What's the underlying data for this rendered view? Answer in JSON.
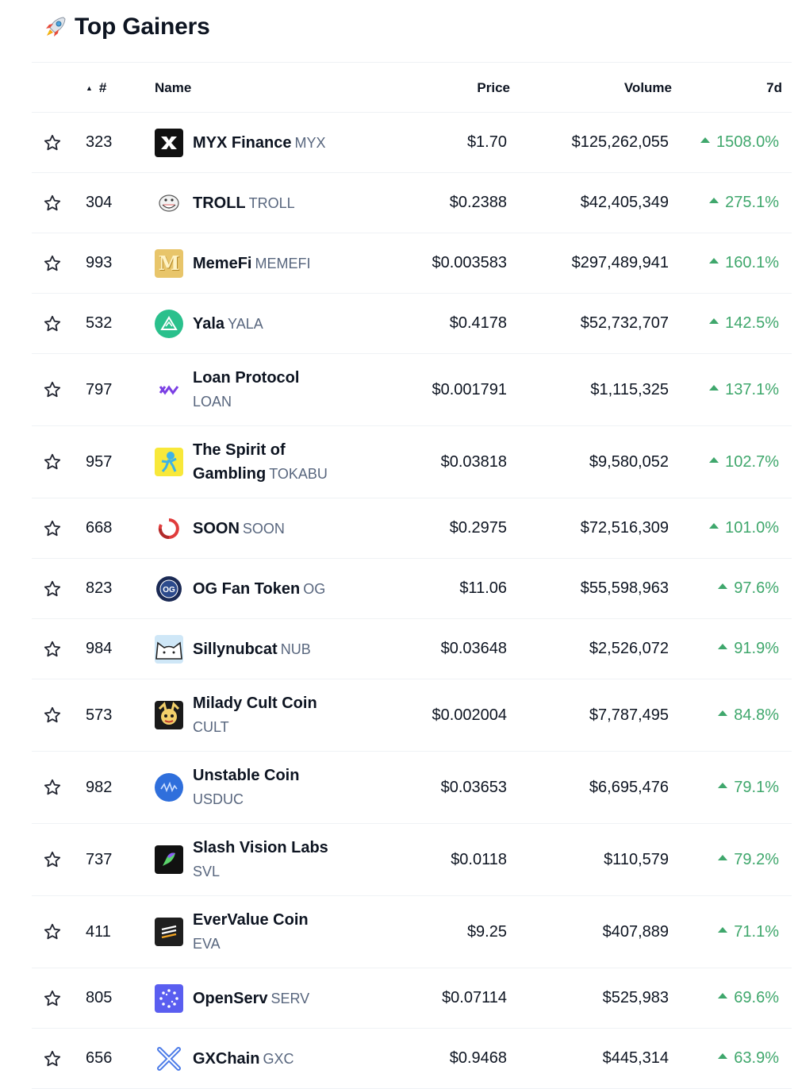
{
  "header": {
    "title": "Top Gainers",
    "icon": "rocket-icon"
  },
  "columns": {
    "rank": "#",
    "name": "Name",
    "price": "Price",
    "volume": "Volume",
    "change": "7d"
  },
  "colors": {
    "positive": "#3fa76c",
    "text": "#0d1421",
    "muted": "#58667e",
    "divider": "#eff2f5"
  },
  "rows": [
    {
      "rank": "323",
      "name": "MYX Finance",
      "symbol": "MYX",
      "price": "$1.70",
      "volume": "$125,262,055",
      "change": "1508.0%",
      "logo": "myx-logo",
      "height": 76,
      "twoLine": false
    },
    {
      "rank": "304",
      "name": "TROLL",
      "symbol": "TROLL",
      "price": "$0.2388",
      "volume": "$42,405,349",
      "change": "275.1%",
      "logo": "troll-logo",
      "height": 76,
      "twoLine": false
    },
    {
      "rank": "993",
      "name": "MemeFi",
      "symbol": "MEMEFI",
      "price": "$0.003583",
      "volume": "$297,489,941",
      "change": "160.1%",
      "logo": "memefi-logo",
      "height": 76,
      "twoLine": false
    },
    {
      "rank": "532",
      "name": "Yala",
      "symbol": "YALA",
      "price": "$0.4178",
      "volume": "$52,732,707",
      "change": "142.5%",
      "logo": "yala-logo",
      "height": 76,
      "twoLine": false
    },
    {
      "rank": "797",
      "name": "Loan Protocol",
      "symbol": "LOAN",
      "price": "$0.001791",
      "volume": "$1,115,325",
      "change": "137.1%",
      "logo": "loan-logo",
      "height": 91,
      "twoLine": true
    },
    {
      "rank": "957",
      "name": "The Spirit of Gambling",
      "symbol": "TOKABU",
      "price": "$0.03818",
      "volume": "$9,580,052",
      "change": "102.7%",
      "logo": "tokabu-logo",
      "height": 91,
      "twoLine": false
    },
    {
      "rank": "668",
      "name": "SOON",
      "symbol": "SOON",
      "price": "$0.2975",
      "volume": "$72,516,309",
      "change": "101.0%",
      "logo": "soon-logo",
      "height": 76,
      "twoLine": false
    },
    {
      "rank": "823",
      "name": "OG Fan Token",
      "symbol": "OG",
      "price": "$11.06",
      "volume": "$55,598,963",
      "change": "97.6%",
      "logo": "og-logo",
      "height": 76,
      "twoLine": false
    },
    {
      "rank": "984",
      "name": "Sillynubcat",
      "symbol": "NUB",
      "price": "$0.03648",
      "volume": "$2,526,072",
      "change": "91.9%",
      "logo": "nub-logo",
      "height": 76,
      "twoLine": false
    },
    {
      "rank": "573",
      "name": "Milady Cult Coin",
      "symbol": "CULT",
      "price": "$0.002004",
      "volume": "$7,787,495",
      "change": "84.8%",
      "logo": "cult-logo",
      "height": 91,
      "twoLine": true
    },
    {
      "rank": "982",
      "name": "Unstable Coin",
      "symbol": "USDUC",
      "price": "$0.03653",
      "volume": "$6,695,476",
      "change": "79.1%",
      "logo": "usduc-logo",
      "height": 91,
      "twoLine": true
    },
    {
      "rank": "737",
      "name": "Slash Vision Labs",
      "symbol": "SVL",
      "price": "$0.0118",
      "volume": "$110,579",
      "change": "79.2%",
      "logo": "svl-logo",
      "height": 91,
      "twoLine": true
    },
    {
      "rank": "411",
      "name": "EverValue Coin",
      "symbol": "EVA",
      "price": "$9.25",
      "volume": "$407,889",
      "change": "71.1%",
      "logo": "eva-logo",
      "height": 91,
      "twoLine": true
    },
    {
      "rank": "805",
      "name": "OpenServ",
      "symbol": "SERV",
      "price": "$0.07114",
      "volume": "$525,983",
      "change": "69.6%",
      "logo": "serv-logo",
      "height": 76,
      "twoLine": false
    },
    {
      "rank": "656",
      "name": "GXChain",
      "symbol": "GXC",
      "price": "$0.9468",
      "volume": "$445,314",
      "change": "63.9%",
      "logo": "gxc-logo",
      "height": 76,
      "twoLine": false
    }
  ]
}
